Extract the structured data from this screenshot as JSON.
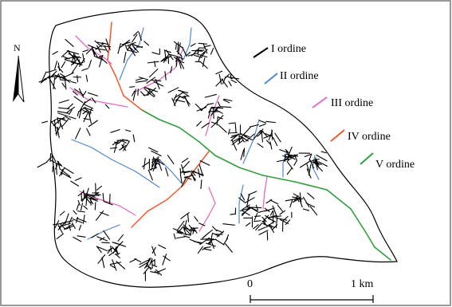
{
  "map": {
    "north_label": "N",
    "legend": [
      {
        "label": "I ordine",
        "color": "#000000"
      },
      {
        "label": "II ordine",
        "color": "#4f86d6"
      },
      {
        "label": "III ordine",
        "color": "#e56bc1"
      },
      {
        "label": "IV ordine",
        "color": "#f4582a"
      },
      {
        "label": "V ordine",
        "color": "#2f9e3c"
      }
    ],
    "scale": {
      "start_label": "0",
      "end_label": "1 km"
    }
  }
}
